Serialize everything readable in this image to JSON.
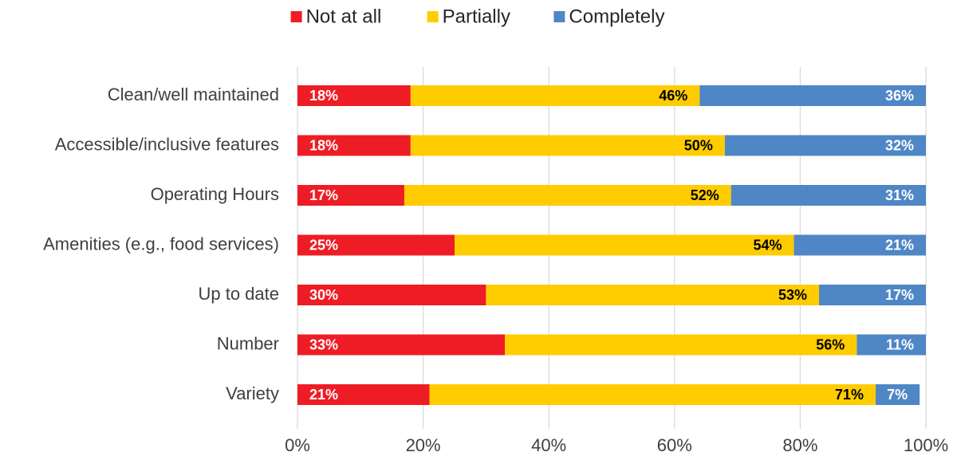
{
  "chart_data": {
    "type": "bar",
    "orientation": "horizontal",
    "stacked": true,
    "categories": [
      "Clean/well maintained",
      "Accessible/inclusive features",
      "Operating Hours",
      "Amenities (e.g., food services)",
      "Up to date",
      "Number",
      "Variety"
    ],
    "series": [
      {
        "name": "Not at all",
        "color": "#ee1c25",
        "label_color": "#ffffff",
        "label_align": "start",
        "values": [
          18,
          18,
          17,
          25,
          30,
          33,
          21
        ],
        "labels": [
          "18%",
          "18%",
          "17%",
          "25%",
          "30%",
          "33%",
          "21%"
        ]
      },
      {
        "name": "Partially",
        "color": "#ffcc00",
        "label_color": "#000000",
        "label_align": "end",
        "values": [
          46,
          50,
          52,
          54,
          53,
          56,
          71
        ],
        "labels": [
          "46%",
          "50%",
          "52%",
          "54%",
          "53%",
          "56%",
          "71%"
        ]
      },
      {
        "name": "Completely",
        "color": "#4f86c6",
        "label_color": "#ffffff",
        "label_align": "end",
        "values": [
          36,
          32,
          31,
          21,
          17,
          11,
          7
        ],
        "labels": [
          "36%",
          "32%",
          "31%",
          "21%",
          "17%",
          "11%",
          "7%"
        ]
      }
    ],
    "xlim": [
      0,
      100
    ],
    "xticks": [
      0,
      20,
      40,
      60,
      80,
      100
    ],
    "xtick_labels": [
      "0%",
      "20%",
      "40%",
      "60%",
      "80%",
      "100%"
    ],
    "grid": "vertical",
    "grid_color": "#d9d9d9",
    "legend_position": "top-center"
  }
}
